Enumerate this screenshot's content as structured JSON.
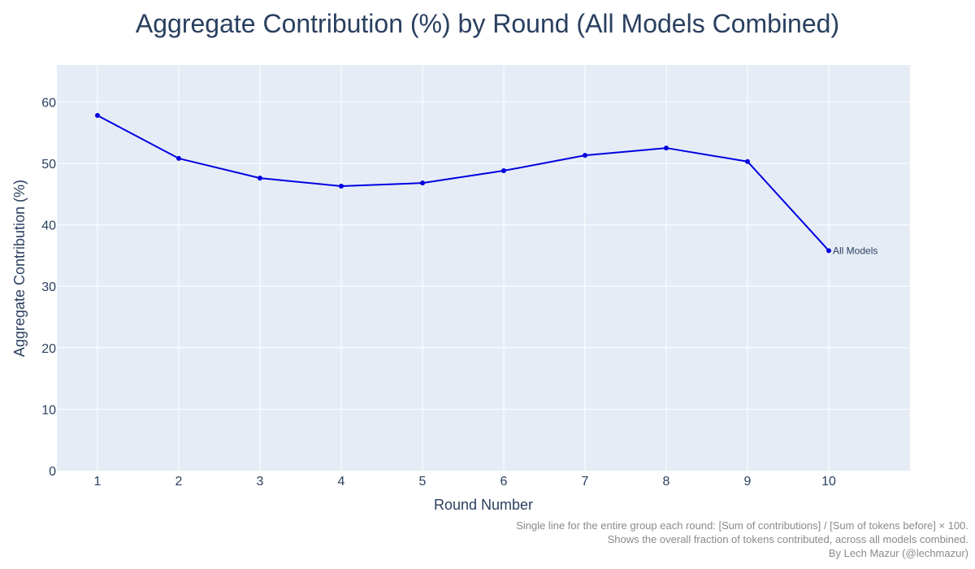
{
  "chart_data": {
    "type": "line",
    "title": "Aggregate Contribution (%) by Round (All Models Combined)",
    "xlabel": "Round Number",
    "ylabel": "Aggregate Contribution (%)",
    "x": [
      1,
      2,
      3,
      4,
      5,
      6,
      7,
      8,
      9,
      10
    ],
    "xlim": [
      0.5,
      11
    ],
    "ylim": [
      0,
      66
    ],
    "yticks": [
      0,
      10,
      20,
      30,
      40,
      50,
      60
    ],
    "grid": true,
    "series": [
      {
        "name": "All Models",
        "color": "#0000e0",
        "values": [
          57.8,
          50.8,
          47.6,
          46.3,
          46.8,
          48.8,
          51.3,
          52.5,
          50.3,
          35.8
        ]
      }
    ]
  },
  "annotations": {
    "note_line1": "Single line for the entire group each round: [Sum of contributions] / [Sum of tokens before] × 100.",
    "note_line2": "Shows the overall fraction of tokens contributed, across all models combined.",
    "credit": "By Lech Mazur (@lechmazur)"
  },
  "colors": {
    "plot_bg": "#e5ecf6",
    "grid": "#ffffff",
    "text": "#2a3f5f"
  }
}
